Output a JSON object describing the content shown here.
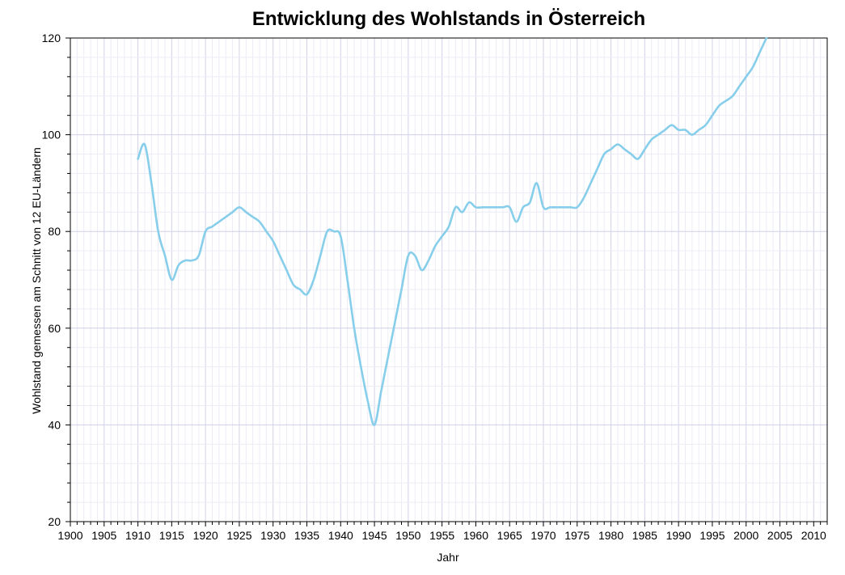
{
  "chart_data": {
    "type": "line",
    "title": "Entwicklung des Wohlstands in Österreich",
    "xlabel": "Jahr",
    "ylabel": "Wohlstand gemessen am Schnitt von 12 EU-Ländern",
    "xlim": [
      1900,
      2012
    ],
    "ylim": [
      20,
      120
    ],
    "x_ticks": [
      1900,
      1905,
      1910,
      1915,
      1920,
      1925,
      1930,
      1935,
      1940,
      1945,
      1950,
      1955,
      1960,
      1965,
      1970,
      1975,
      1980,
      1985,
      1990,
      1995,
      2000,
      2005,
      2010
    ],
    "y_ticks": [
      20,
      40,
      60,
      80,
      100,
      120
    ],
    "grid": true,
    "line_color": "#87CEEB",
    "series": [
      {
        "x": [
          1910,
          1911,
          1912,
          1913,
          1914,
          1915,
          1916,
          1917,
          1918,
          1919,
          1920,
          1921,
          1922,
          1923,
          1924,
          1925,
          1926,
          1927,
          1928,
          1929,
          1930,
          1931,
          1932,
          1933,
          1934,
          1935,
          1936,
          1937,
          1938,
          1939,
          1940,
          1941,
          1942,
          1943,
          1944,
          1945,
          1946,
          1947,
          1948,
          1949,
          1950,
          1951,
          1952,
          1953,
          1954,
          1955,
          1956,
          1957,
          1958,
          1959,
          1960,
          1961,
          1962,
          1963,
          1964,
          1965,
          1966,
          1967,
          1968,
          1969,
          1970,
          1971,
          1972,
          1973,
          1974,
          1975,
          1976,
          1977,
          1978,
          1979,
          1980,
          1981,
          1982,
          1983,
          1984,
          1985,
          1986,
          1987,
          1988,
          1989,
          1990,
          1991,
          1992,
          1993,
          1994,
          1995,
          1996,
          1997,
          1998,
          1999,
          2000,
          2001,
          2002,
          2003
        ],
        "values": [
          95,
          98,
          90,
          80,
          75,
          70,
          73,
          74,
          74,
          75,
          80,
          81,
          82,
          83,
          84,
          85,
          84,
          83,
          82,
          80,
          78,
          75,
          72,
          69,
          68,
          67,
          70,
          75,
          80,
          80,
          79,
          70,
          60,
          52,
          45,
          40,
          47,
          54,
          61,
          68,
          75,
          75,
          72,
          74,
          77,
          79,
          81,
          85,
          84,
          86,
          85,
          85,
          85,
          85,
          85,
          85,
          82,
          85,
          86,
          90,
          85,
          85,
          85,
          85,
          85,
          85,
          87,
          90,
          93,
          96,
          97,
          98,
          97,
          96,
          95,
          97,
          99,
          100,
          101,
          102,
          101,
          101,
          100,
          101,
          102,
          104,
          106,
          107,
          108,
          110,
          112,
          114,
          117,
          120
        ]
      }
    ]
  }
}
